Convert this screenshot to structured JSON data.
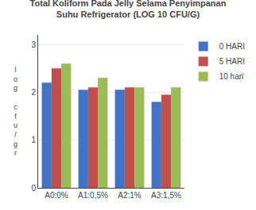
{
  "chart_data": {
    "type": "bar",
    "title": "Total Koliform Pada Jelly Selama Penyimpanan\nSuhu Refrigerator (LOG 10 CFU/G)",
    "ylabel": "l\no\ng\n\nc\nf\nu\n/\ng\nr",
    "categories": [
      "A0:0%",
      "A1:0,5%",
      "A2:1%",
      "A3:1,5%"
    ],
    "series": [
      {
        "name": "0 HARI",
        "color": "#4472C4",
        "values": [
          2.2,
          2.05,
          2.05,
          1.8
        ]
      },
      {
        "name": "5 HARI",
        "color": "#C0504D",
        "values": [
          2.5,
          2.1,
          2.1,
          1.95
        ]
      },
      {
        "name": "10 hari",
        "color": "#9BBB59",
        "values": [
          2.6,
          2.3,
          2.1,
          2.1
        ]
      }
    ],
    "ylim": [
      0,
      3.2
    ],
    "yticks": [
      0,
      1,
      2,
      3
    ],
    "grid": true,
    "legend": "upper right"
  }
}
